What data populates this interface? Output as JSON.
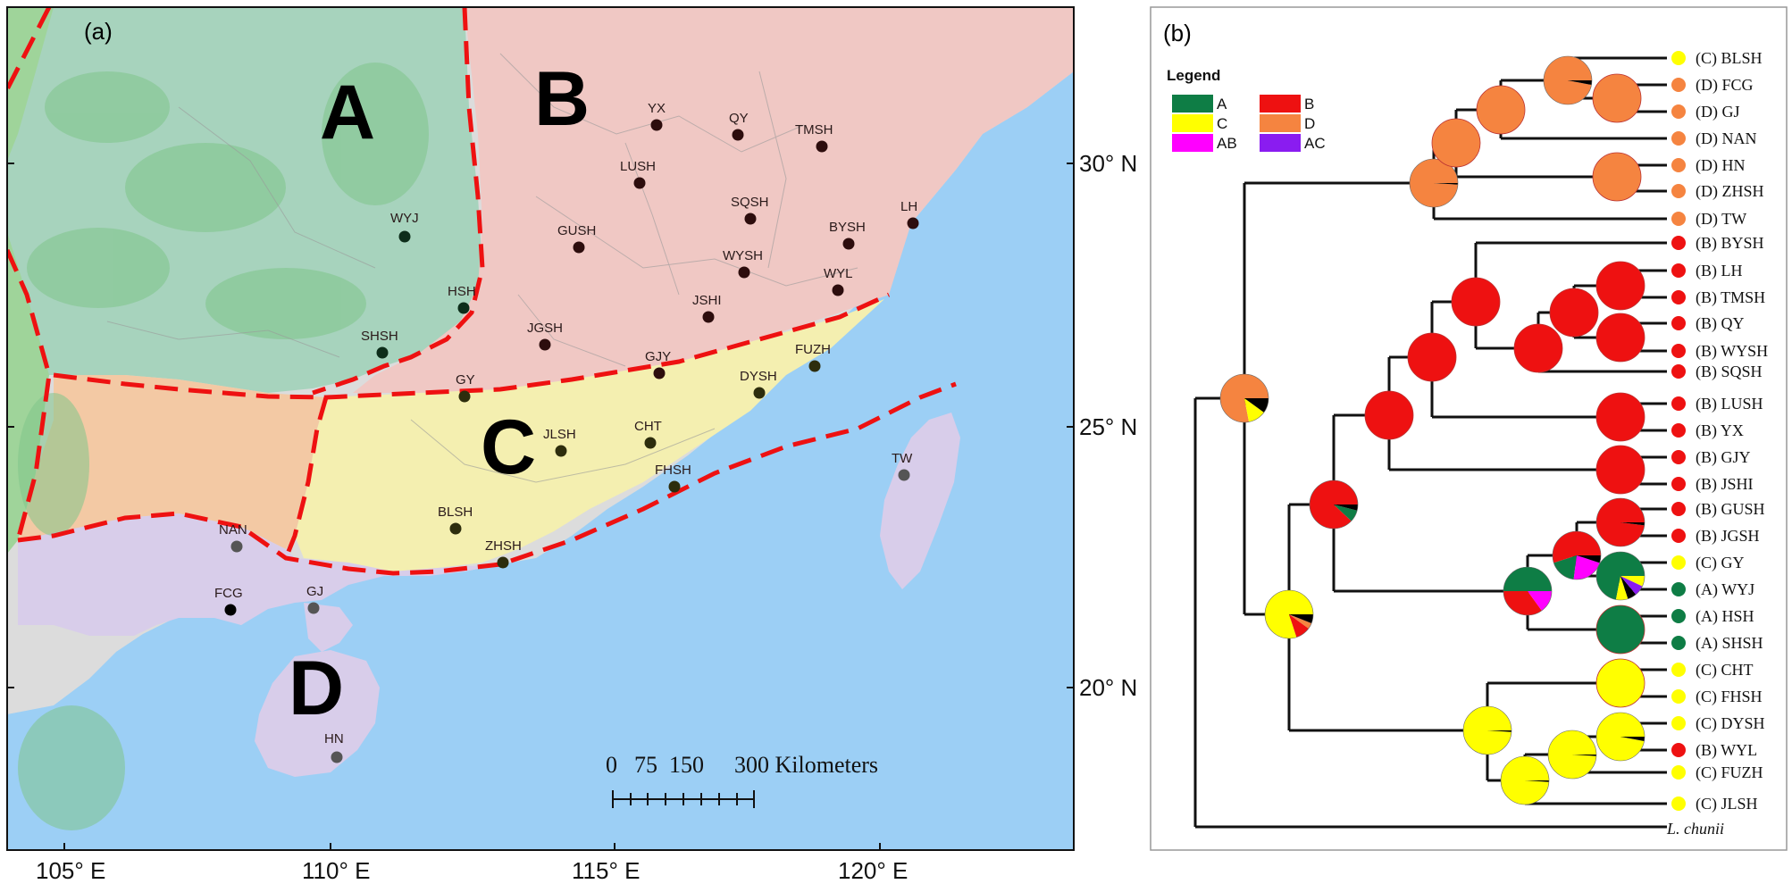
{
  "panel_a": {
    "label": "(a)",
    "regions": [
      {
        "id": "A",
        "label": "A",
        "color": "#a7d3bd"
      },
      {
        "id": "B",
        "label": "B",
        "color": "#f0c8c4"
      },
      {
        "id": "C",
        "label": "C",
        "color": "#f4efb0"
      },
      {
        "id": "D",
        "label": "D",
        "color": "#d8cdea"
      }
    ],
    "sites": [
      "YX",
      "QY",
      "TMSH",
      "LUSH",
      "SQSH",
      "LH",
      "BYSH",
      "GUSH",
      "WYSH",
      "WYJ",
      "WYL",
      "JSHI",
      "HSH",
      "JGSH",
      "SHSH",
      "GJY",
      "FUZH",
      "GY",
      "DYSH",
      "CHT",
      "JLSH",
      "FHSH",
      "TW",
      "BLSH",
      "NAN",
      "ZHSH",
      "FCG",
      "GJ",
      "HN"
    ],
    "lat_labels": [
      "30° N",
      "25° N",
      "20° N"
    ],
    "lon_labels": [
      "105° E",
      "110° E",
      "115° E",
      "120° E"
    ],
    "scale_bar": {
      "zero": "0",
      "a": "75",
      "b": "150",
      "end": "300 Kilometers"
    }
  },
  "panel_b": {
    "label": "(b)",
    "legend_title": "Legend",
    "legend": [
      {
        "label": "A",
        "color": "#0e7d45"
      },
      {
        "label": "B",
        "color": "#ee1111"
      },
      {
        "label": "C",
        "color": "#ffff00"
      },
      {
        "label": "D",
        "color": "#f58440"
      },
      {
        "label": "AB",
        "color": "#ff00ff"
      },
      {
        "label": "AC",
        "color": "#8a1cf0"
      }
    ],
    "tips": [
      {
        "label": "(C) BLSH",
        "area": "C"
      },
      {
        "label": "(D) FCG",
        "area": "D"
      },
      {
        "label": "(D) GJ",
        "area": "D"
      },
      {
        "label": "(D) NAN",
        "area": "D"
      },
      {
        "label": "(D) HN",
        "area": "D"
      },
      {
        "label": "(D) ZHSH",
        "area": "D"
      },
      {
        "label": "(D) TW",
        "area": "D"
      },
      {
        "label": "(B) BYSH",
        "area": "B"
      },
      {
        "label": "(B) LH",
        "area": "B"
      },
      {
        "label": "(B) TMSH",
        "area": "B"
      },
      {
        "label": "(B) QY",
        "area": "B"
      },
      {
        "label": "(B) WYSH",
        "area": "B"
      },
      {
        "label": "(B) SQSH",
        "area": "B"
      },
      {
        "label": "(B) LUSH",
        "area": "B"
      },
      {
        "label": "(B) YX",
        "area": "B"
      },
      {
        "label": "(B) GJY",
        "area": "B"
      },
      {
        "label": "(B) JSHI",
        "area": "B"
      },
      {
        "label": "(B) GUSH",
        "area": "B"
      },
      {
        "label": "(B) JGSH",
        "area": "B"
      },
      {
        "label": "(C) GY",
        "area": "C"
      },
      {
        "label": "(A) WYJ",
        "area": "A"
      },
      {
        "label": "(A) HSH",
        "area": "A"
      },
      {
        "label": "(A) SHSH",
        "area": "A"
      },
      {
        "label": "(C) CHT",
        "area": "C"
      },
      {
        "label": "(C) FHSH",
        "area": "C"
      },
      {
        "label": "(C) DYSH",
        "area": "C"
      },
      {
        "label": "(B) WYL",
        "area": "B"
      },
      {
        "label": "(C) FUZH",
        "area": "C"
      },
      {
        "label": "(C) JLSH",
        "area": "C"
      }
    ],
    "outgroup": "L. chunii"
  }
}
